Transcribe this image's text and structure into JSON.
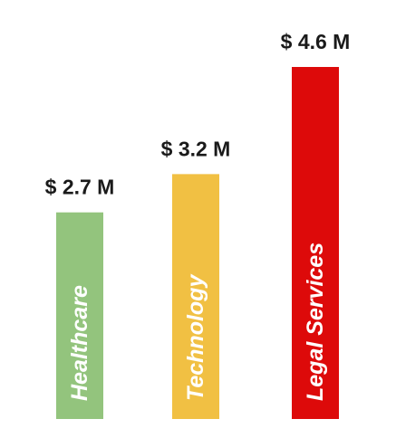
{
  "chart_data": {
    "type": "bar",
    "title": "",
    "xlabel": "",
    "ylabel": "",
    "categories": [
      "Healthcare",
      "Technology",
      "Legal Services"
    ],
    "values": [
      2.7,
      3.2,
      4.6
    ],
    "unit": "M",
    "currency": "$",
    "data_labels": [
      "$ 2.7 M",
      "$ 3.2 M",
      "$ 4.6 M"
    ],
    "colors": [
      "#93c47d",
      "#f1c043",
      "#dd0a0a"
    ],
    "category_label_color": "#ffffff",
    "value_label_color": "#1a1a1a",
    "ylim": [
      0,
      4.6
    ],
    "grid": false,
    "legend": "none"
  }
}
